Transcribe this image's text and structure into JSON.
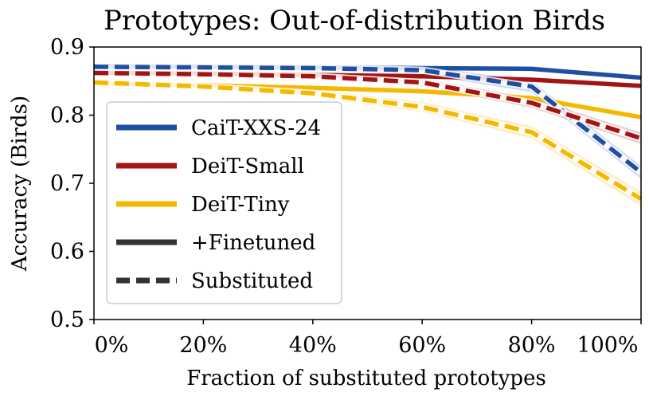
{
  "chart_data": {
    "type": "line",
    "title": "Prototypes: Out-of-distribution Birds",
    "xlabel": "Fraction of substituted prototypes",
    "ylabel": "Accuracy (Birds)",
    "x": [
      0,
      20,
      40,
      60,
      80,
      100
    ],
    "x_tick_labels": [
      "0%",
      "20%",
      "40%",
      "60%",
      "80%",
      "100%"
    ],
    "xlim": [
      0,
      100
    ],
    "y_ticks": [
      0.5,
      0.6,
      0.7,
      0.8,
      0.9
    ],
    "y_tick_labels": [
      "0.5",
      "0.6",
      "0.7",
      "0.8",
      "0.9"
    ],
    "ylim": [
      0.5,
      0.9
    ],
    "grid": false,
    "legend_position": "center-left",
    "series": [
      {
        "name": "CaiT-XXS-24",
        "variant": "+Finetuned",
        "color": "#1f4fa3",
        "values": [
          0.872,
          0.871,
          0.87,
          0.869,
          0.868,
          0.855
        ]
      },
      {
        "name": "CaiT-XXS-24",
        "variant": "Substituted",
        "color": "#1f4fa3",
        "values": [
          0.871,
          0.87,
          0.869,
          0.866,
          0.842,
          0.716
        ],
        "band": 0.008
      },
      {
        "name": "DeiT-Small",
        "variant": "+Finetuned",
        "color": "#a31515",
        "values": [
          0.862,
          0.861,
          0.859,
          0.857,
          0.852,
          0.843
        ]
      },
      {
        "name": "DeiT-Small",
        "variant": "Substituted",
        "color": "#a31515",
        "values": [
          0.862,
          0.86,
          0.857,
          0.848,
          0.818,
          0.766
        ],
        "band": 0.007
      },
      {
        "name": "DeiT-Tiny",
        "variant": "+Finetuned",
        "color": "#f5b800",
        "values": [
          0.846,
          0.844,
          0.84,
          0.835,
          0.825,
          0.797
        ]
      },
      {
        "name": "DeiT-Tiny",
        "variant": "Substituted",
        "color": "#f5b800",
        "values": [
          0.848,
          0.842,
          0.832,
          0.812,
          0.775,
          0.677
        ],
        "band": 0.009
      }
    ],
    "legend": [
      {
        "label": "CaiT-XXS-24",
        "color": "#1f4fa3",
        "style": "solid"
      },
      {
        "label": "DeiT-Small",
        "color": "#a31515",
        "style": "solid"
      },
      {
        "label": "DeiT-Tiny",
        "color": "#f5b800",
        "style": "solid"
      },
      {
        "label": "+Finetuned",
        "color": "#333333",
        "style": "solid"
      },
      {
        "label": "Substituted",
        "color": "#333333",
        "style": "dashed"
      }
    ]
  }
}
